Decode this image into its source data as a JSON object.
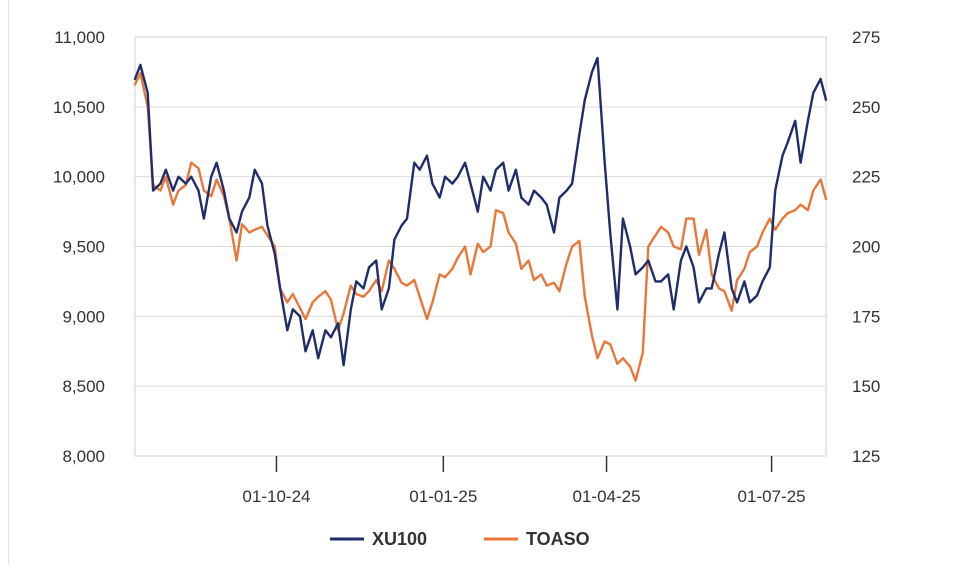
{
  "chart_data": {
    "type": "line",
    "title": "",
    "xlabel": "",
    "ylabel": "",
    "x_tick_labels": [
      "01-10-24",
      "01-01-25",
      "01-04-25",
      "01-07-25"
    ],
    "x_tick_dates": [
      "2024-10-01",
      "2025-01-01",
      "2025-04-01",
      "2025-07-01"
    ],
    "x_range": [
      "2024-07-15",
      "2025-07-31"
    ],
    "y_left_range": [
      8000,
      11000
    ],
    "y_left_ticks": [
      8000,
      8500,
      9000,
      9500,
      10000,
      10500,
      11000
    ],
    "y_left_tick_labels": [
      "8,000",
      "8,500",
      "9,000",
      "9,500",
      "10,000",
      "10,500",
      "11,000"
    ],
    "y_right_range": [
      125,
      275
    ],
    "y_right_ticks": [
      125,
      150,
      175,
      200,
      225,
      250,
      275
    ],
    "y_right_tick_labels": [
      "125",
      "150",
      "175",
      "200",
      "225",
      "250",
      "275"
    ],
    "grid": "horizontal",
    "legend_position": "bottom-center",
    "series": [
      {
        "name": "XU100",
        "axis": "left",
        "color": "#1f2d6b",
        "x": [
          "2024-07-15",
          "2024-07-18",
          "2024-07-22",
          "2024-07-25",
          "2024-07-29",
          "2024-08-01",
          "2024-08-05",
          "2024-08-08",
          "2024-08-12",
          "2024-08-15",
          "2024-08-19",
          "2024-08-22",
          "2024-08-26",
          "2024-08-29",
          "2024-09-02",
          "2024-09-05",
          "2024-09-09",
          "2024-09-12",
          "2024-09-16",
          "2024-09-19",
          "2024-09-23",
          "2024-09-26",
          "2024-09-30",
          "2024-10-03",
          "2024-10-07",
          "2024-10-10",
          "2024-10-14",
          "2024-10-17",
          "2024-10-21",
          "2024-10-24",
          "2024-10-28",
          "2024-10-31",
          "2024-11-04",
          "2024-11-07",
          "2024-11-11",
          "2024-11-14",
          "2024-11-18",
          "2024-11-21",
          "2024-11-25",
          "2024-11-28",
          "2024-12-02",
          "2024-12-05",
          "2024-12-09",
          "2024-12-12",
          "2024-12-16",
          "2024-12-19",
          "2024-12-23",
          "2024-12-26",
          "2024-12-30",
          "2025-01-02",
          "2025-01-06",
          "2025-01-09",
          "2025-01-13",
          "2025-01-16",
          "2025-01-20",
          "2025-01-23",
          "2025-01-27",
          "2025-01-30",
          "2025-02-03",
          "2025-02-06",
          "2025-02-10",
          "2025-02-13",
          "2025-02-17",
          "2025-02-20",
          "2025-02-24",
          "2025-02-27",
          "2025-03-03",
          "2025-03-06",
          "2025-03-10",
          "2025-03-13",
          "2025-03-17",
          "2025-03-20",
          "2025-03-24",
          "2025-03-27",
          "2025-03-31",
          "2025-04-03",
          "2025-04-07",
          "2025-04-10",
          "2025-04-14",
          "2025-04-17",
          "2025-04-21",
          "2025-04-24",
          "2025-04-28",
          "2025-05-01",
          "2025-05-05",
          "2025-05-08",
          "2025-05-12",
          "2025-05-15",
          "2025-05-19",
          "2025-05-22",
          "2025-05-26",
          "2025-05-29",
          "2025-06-02",
          "2025-06-05",
          "2025-06-09",
          "2025-06-12",
          "2025-06-16",
          "2025-06-19",
          "2025-06-23",
          "2025-06-26",
          "2025-06-30",
          "2025-07-03",
          "2025-07-07",
          "2025-07-10",
          "2025-07-14",
          "2025-07-17",
          "2025-07-21",
          "2025-07-24",
          "2025-07-28",
          "2025-07-31"
        ],
        "values": [
          10700,
          10800,
          10600,
          9900,
          9950,
          10050,
          9900,
          10000,
          9950,
          10000,
          9900,
          9700,
          10000,
          10100,
          9900,
          9700,
          9600,
          9750,
          9850,
          10050,
          9950,
          9650,
          9450,
          9200,
          8900,
          9050,
          9000,
          8750,
          8900,
          8700,
          8900,
          8850,
          8950,
          8650,
          9050,
          9250,
          9200,
          9350,
          9400,
          9050,
          9200,
          9550,
          9650,
          9700,
          10100,
          10050,
          10150,
          9950,
          9850,
          10000,
          9950,
          10000,
          10100,
          9950,
          9750,
          10000,
          9900,
          10050,
          10100,
          9900,
          10050,
          9850,
          9800,
          9900,
          9850,
          9800,
          9600,
          9850,
          9900,
          9950,
          10300,
          10550,
          10750,
          10850,
          10100,
          9600,
          9050,
          9700,
          9500,
          9300,
          9350,
          9400,
          9250,
          9250,
          9300,
          9050,
          9400,
          9500,
          9350,
          9100,
          9200,
          9200,
          9450,
          9600,
          9200,
          9100,
          9250,
          9100,
          9150,
          9250,
          9350,
          9900,
          10150,
          10250,
          10400,
          10100,
          10400,
          10600,
          10700,
          10550
        ]
      },
      {
        "name": "TOASO",
        "axis": "right",
        "color": "#e8773a",
        "x": [
          "2024-07-15",
          "2024-07-18",
          "2024-07-22",
          "2024-07-25",
          "2024-07-29",
          "2024-08-01",
          "2024-08-05",
          "2024-08-08",
          "2024-08-12",
          "2024-08-15",
          "2024-08-19",
          "2024-08-22",
          "2024-08-26",
          "2024-08-29",
          "2024-09-02",
          "2024-09-05",
          "2024-09-09",
          "2024-09-12",
          "2024-09-16",
          "2024-09-19",
          "2024-09-23",
          "2024-09-26",
          "2024-09-30",
          "2024-10-03",
          "2024-10-07",
          "2024-10-10",
          "2024-10-14",
          "2024-10-17",
          "2024-10-21",
          "2024-10-24",
          "2024-10-28",
          "2024-10-31",
          "2024-11-04",
          "2024-11-07",
          "2024-11-11",
          "2024-11-14",
          "2024-11-18",
          "2024-11-21",
          "2024-11-25",
          "2024-11-28",
          "2024-12-02",
          "2024-12-05",
          "2024-12-09",
          "2024-12-12",
          "2024-12-16",
          "2024-12-19",
          "2024-12-23",
          "2024-12-26",
          "2024-12-30",
          "2025-01-02",
          "2025-01-06",
          "2025-01-09",
          "2025-01-13",
          "2025-01-16",
          "2025-01-20",
          "2025-01-23",
          "2025-01-27",
          "2025-01-30",
          "2025-02-03",
          "2025-02-06",
          "2025-02-10",
          "2025-02-13",
          "2025-02-17",
          "2025-02-20",
          "2025-02-24",
          "2025-02-27",
          "2025-03-03",
          "2025-03-06",
          "2025-03-10",
          "2025-03-13",
          "2025-03-17",
          "2025-03-20",
          "2025-03-24",
          "2025-03-27",
          "2025-03-31",
          "2025-04-03",
          "2025-04-07",
          "2025-04-10",
          "2025-04-14",
          "2025-04-17",
          "2025-04-21",
          "2025-04-24",
          "2025-04-28",
          "2025-05-01",
          "2025-05-05",
          "2025-05-08",
          "2025-05-12",
          "2025-05-15",
          "2025-05-19",
          "2025-05-22",
          "2025-05-26",
          "2025-05-29",
          "2025-06-02",
          "2025-06-05",
          "2025-06-09",
          "2025-06-12",
          "2025-06-16",
          "2025-06-19",
          "2025-06-23",
          "2025-06-26",
          "2025-06-30",
          "2025-07-03",
          "2025-07-07",
          "2025-07-10",
          "2025-07-14",
          "2025-07-17",
          "2025-07-21",
          "2025-07-24",
          "2025-07-28",
          "2025-07-31"
        ],
        "values": [
          258,
          262,
          250,
          222,
          220,
          225,
          215,
          220,
          222,
          230,
          228,
          220,
          218,
          224,
          218,
          210,
          195,
          208,
          205,
          206,
          207,
          204,
          200,
          185,
          180,
          183,
          178,
          174,
          180,
          182,
          184,
          181,
          170,
          176,
          186,
          183,
          182,
          184,
          188,
          184,
          195,
          192,
          187,
          186,
          188,
          182,
          174,
          180,
          190,
          189,
          192,
          196,
          200,
          190,
          201,
          198,
          200,
          213,
          212,
          205,
          201,
          192,
          195,
          188,
          190,
          186,
          187,
          184,
          194,
          200,
          202,
          182,
          168,
          160,
          166,
          165,
          158,
          160,
          157,
          152,
          162,
          200,
          204,
          207,
          205,
          200,
          199,
          210,
          210,
          197,
          206,
          190,
          185,
          184,
          177,
          188,
          192,
          198,
          200,
          205,
          210,
          206,
          210,
          212,
          213,
          215,
          213,
          220,
          224,
          217
        ]
      }
    ]
  }
}
